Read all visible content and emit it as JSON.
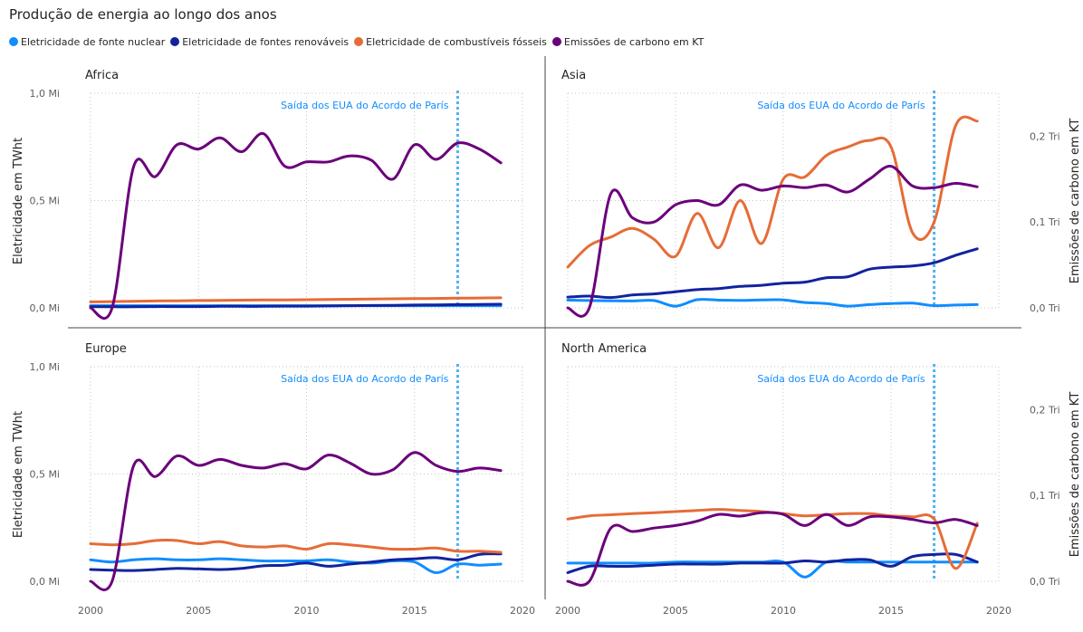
{
  "title": "Produção de energia ao longo dos anos",
  "legend": [
    {
      "label": "Eletricidade de fonte nuclear",
      "color": "#118DFF"
    },
    {
      "label": "Eletricidade de fontes renováveis",
      "color": "#12239E"
    },
    {
      "label": "Eletricidade de combustíveis fósseis",
      "color": "#E66C37"
    },
    {
      "label": "Emissões de carbono em KT",
      "color": "#6B007B"
    }
  ],
  "axes": {
    "y_left_label": "Eletricidade em TWht",
    "y_right_label": "Emissões de carbono em KT",
    "y_left_ticks": [
      "0,0 Mi",
      "0,5 Mi",
      "1,0 Mi"
    ],
    "y_right_ticks": [
      "0,0 Tri",
      "0,1 Tri",
      "0,2 Tri"
    ],
    "x_ticks": [
      "2000",
      "2005",
      "2010",
      "2015",
      "2020"
    ]
  },
  "reference_line": {
    "label": "Saída dos EUA do Acordo de París",
    "year": 2017,
    "color": "#4FB3F0"
  },
  "chart_data": {
    "type": "line",
    "x_range": [
      2000,
      2020
    ],
    "y_left_range": [
      0,
      1.0
    ],
    "y_right_range": [
      0,
      0.25
    ],
    "y_left_unit": "Mi",
    "y_right_unit": "Tri",
    "x": [
      2000,
      2001,
      2002,
      2003,
      2004,
      2005,
      2006,
      2007,
      2008,
      2009,
      2010,
      2011,
      2012,
      2013,
      2014,
      2015,
      2016,
      2017,
      2018,
      2019
    ],
    "panels": [
      {
        "name": "Africa",
        "series": [
          {
            "name": "Eletricidade de fonte nuclear",
            "axis": "left",
            "values": [
              0.01,
              0.01,
              0.01,
              0.01,
              0.01,
              0.01,
              0.01,
              0.01,
              0.01,
              0.01,
              0.01,
              0.01,
              0.01,
              0.01,
              0.01,
              0.01,
              0.01,
              0.01,
              0.01,
              0.01
            ]
          },
          {
            "name": "Eletricidade de fontes renováveis",
            "axis": "left",
            "values": [
              0.005,
              0.005,
              0.005,
              0.006,
              0.006,
              0.006,
              0.007,
              0.007,
              0.007,
              0.008,
              0.008,
              0.009,
              0.01,
              0.011,
              0.012,
              0.013,
              0.014,
              0.015,
              0.016,
              0.017
            ]
          },
          {
            "name": "Eletricidade de combustíveis fósseis",
            "axis": "left",
            "values": [
              0.028,
              0.029,
              0.031,
              0.032,
              0.033,
              0.034,
              0.035,
              0.036,
              0.037,
              0.037,
              0.038,
              0.039,
              0.04,
              0.041,
              0.042,
              0.043,
              0.044,
              0.045,
              0.046,
              0.047
            ]
          },
          {
            "name": "Emissões de carbono em KT",
            "axis": "right",
            "values": [
              0.0,
              0.0,
              0.165,
              0.153,
              0.19,
              0.185,
              0.198,
              0.182,
              0.203,
              0.165,
              0.17,
              0.17,
              0.177,
              0.172,
              0.15,
              0.19,
              0.173,
              0.192,
              0.185,
              0.169
            ]
          }
        ]
      },
      {
        "name": "Asia",
        "series": [
          {
            "name": "Eletricidade de fonte nuclear",
            "axis": "left",
            "values": [
              0.036,
              0.034,
              0.033,
              0.032,
              0.034,
              0.008,
              0.038,
              0.036,
              0.035,
              0.037,
              0.037,
              0.025,
              0.02,
              0.008,
              0.015,
              0.02,
              0.022,
              0.01,
              0.013,
              0.015
            ]
          },
          {
            "name": "Eletricidade de fontes renováveis",
            "axis": "left",
            "values": [
              0.05,
              0.055,
              0.048,
              0.06,
              0.065,
              0.075,
              0.085,
              0.09,
              0.1,
              0.105,
              0.115,
              0.12,
              0.14,
              0.145,
              0.18,
              0.19,
              0.195,
              0.21,
              0.245,
              0.275
            ]
          },
          {
            "name": "Eletricidade de combustíveis fósseis",
            "axis": "left",
            "values": [
              0.19,
              0.29,
              0.33,
              0.37,
              0.32,
              0.24,
              0.44,
              0.28,
              0.5,
              0.3,
              0.6,
              0.61,
              0.71,
              0.75,
              0.78,
              0.75,
              0.35,
              0.4,
              0.85,
              0.87
            ]
          },
          {
            "name": "Emissões de carbono em KT",
            "axis": "right",
            "values": [
              0.0,
              0.0,
              0.133,
              0.105,
              0.1,
              0.12,
              0.125,
              0.12,
              0.143,
              0.137,
              0.142,
              0.14,
              0.143,
              0.135,
              0.15,
              0.165,
              0.142,
              0.14,
              0.145,
              0.141
            ]
          }
        ]
      },
      {
        "name": "Europe",
        "series": [
          {
            "name": "Eletricidade de fonte nuclear",
            "axis": "left",
            "values": [
              0.1,
              0.09,
              0.1,
              0.105,
              0.1,
              0.1,
              0.105,
              0.1,
              0.095,
              0.095,
              0.095,
              0.1,
              0.09,
              0.085,
              0.095,
              0.09,
              0.04,
              0.08,
              0.075,
              0.08
            ]
          },
          {
            "name": "Eletricidade de fontes renováveis",
            "axis": "left",
            "values": [
              0.055,
              0.052,
              0.05,
              0.055,
              0.06,
              0.058,
              0.055,
              0.06,
              0.072,
              0.075,
              0.085,
              0.07,
              0.08,
              0.09,
              0.1,
              0.105,
              0.11,
              0.1,
              0.125,
              0.128
            ]
          },
          {
            "name": "Eletricidade de combustíveis fósseis",
            "axis": "left",
            "values": [
              0.175,
              0.17,
              0.175,
              0.19,
              0.19,
              0.175,
              0.185,
              0.165,
              0.16,
              0.165,
              0.15,
              0.175,
              0.17,
              0.16,
              0.15,
              0.15,
              0.155,
              0.14,
              0.14,
              0.135
            ]
          },
          {
            "name": "Emissões de carbono em KT",
            "axis": "right",
            "values": [
              0.0,
              0.0,
              0.135,
              0.122,
              0.146,
              0.135,
              0.142,
              0.135,
              0.132,
              0.137,
              0.131,
              0.147,
              0.138,
              0.125,
              0.13,
              0.15,
              0.135,
              0.128,
              0.132,
              0.129
            ]
          }
        ]
      },
      {
        "name": "North America",
        "series": [
          {
            "name": "Eletricidade de fonte nuclear",
            "axis": "left",
            "values": [
              0.085,
              0.085,
              0.085,
              0.085,
              0.085,
              0.09,
              0.09,
              0.09,
              0.09,
              0.09,
              0.09,
              0.02,
              0.09,
              0.09,
              0.09,
              0.09,
              0.09,
              0.09,
              0.09,
              0.09
            ]
          },
          {
            "name": "Eletricidade de fontes renováveis",
            "axis": "left",
            "values": [
              0.04,
              0.07,
              0.07,
              0.07,
              0.075,
              0.08,
              0.08,
              0.08,
              0.085,
              0.085,
              0.085,
              0.095,
              0.09,
              0.1,
              0.1,
              0.07,
              0.115,
              0.125,
              0.125,
              0.09
            ]
          },
          {
            "name": "Eletricidade de combustíveis fósseis",
            "axis": "left",
            "values": [
              0.29,
              0.305,
              0.31,
              0.315,
              0.32,
              0.325,
              0.33,
              0.335,
              0.33,
              0.325,
              0.315,
              0.305,
              0.31,
              0.315,
              0.315,
              0.305,
              0.3,
              0.29,
              0.06,
              0.27
            ]
          },
          {
            "name": "Emissões de carbono em KT",
            "axis": "right",
            "values": [
              0.0,
              0.0,
              0.062,
              0.058,
              0.062,
              0.065,
              0.07,
              0.078,
              0.076,
              0.08,
              0.078,
              0.065,
              0.078,
              0.065,
              0.075,
              0.075,
              0.072,
              0.068,
              0.072,
              0.065
            ]
          }
        ]
      }
    ]
  }
}
